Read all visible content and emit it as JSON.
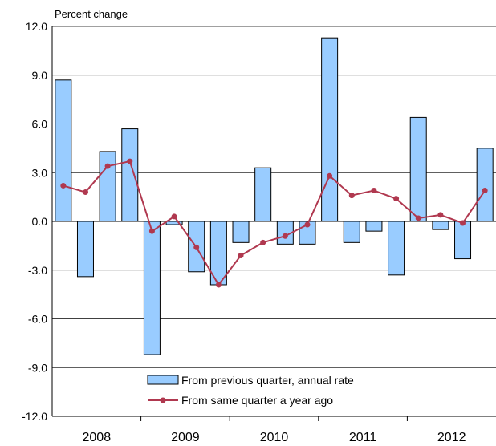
{
  "chart_data": {
    "type": "bar",
    "ylabel": "Percent change",
    "ylim": [
      -12.0,
      12.0
    ],
    "yticks": [
      "12.0",
      "9.0",
      "6.0",
      "3.0",
      "0.0",
      "-3.0",
      "-6.0",
      "-9.0",
      "-12.0"
    ],
    "ytick_values": [
      12,
      9,
      6,
      3,
      0,
      -3,
      -6,
      -9,
      -12
    ],
    "year_labels": [
      "2008",
      "2009",
      "2010",
      "2011",
      "2012"
    ],
    "x": [
      "2008Q1",
      "2008Q2",
      "2008Q3",
      "2008Q4",
      "2009Q1",
      "2009Q2",
      "2009Q3",
      "2009Q4",
      "2010Q1",
      "2010Q2",
      "2010Q3",
      "2010Q4",
      "2011Q1",
      "2011Q2",
      "2011Q3",
      "2011Q4",
      "2012Q1",
      "2012Q2",
      "2012Q3",
      "2012Q4"
    ],
    "grid": true,
    "legend_position": "bottom-right",
    "series": [
      {
        "name": "From previous quarter, annual rate",
        "type": "bar",
        "color": "#99CCFF",
        "edge": "#000000",
        "values": [
          8.7,
          -3.4,
          4.3,
          5.7,
          -8.2,
          -0.2,
          -3.1,
          -3.9,
          -1.3,
          3.3,
          -1.4,
          -1.4,
          11.3,
          -1.3,
          -0.6,
          -3.3,
          6.4,
          -0.5,
          -2.3,
          4.5
        ]
      },
      {
        "name": "From same quarter a year ago",
        "type": "line",
        "color": "#B0384F",
        "values": [
          2.2,
          1.8,
          3.4,
          3.7,
          -0.6,
          0.3,
          -1.6,
          -3.9,
          -2.1,
          -1.3,
          -0.9,
          -0.2,
          2.8,
          1.6,
          1.9,
          1.4,
          0.2,
          0.4,
          -0.1,
          1.9
        ]
      }
    ]
  }
}
